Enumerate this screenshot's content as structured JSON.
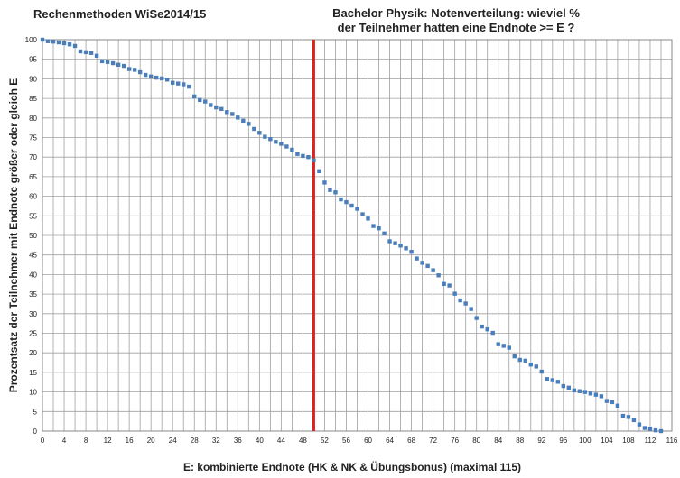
{
  "chart_data": {
    "type": "scatter",
    "title_left": "Rechenmethoden WiSe2014/15",
    "title_right_line1": "Bachelor Physik: Notenverteilung: wieviel %",
    "title_right_line2": "der Teilnehmer  hatten eine Endnote >= E ?",
    "xlabel": "E: kombinierte Endnote (HK & NK & Übungsbonus) (maximal 115)",
    "ylabel": "Prozentsatz der Teilnehmer mit Endnote größer oder gleich E",
    "xlim": [
      0,
      116
    ],
    "ylim": [
      0,
      100
    ],
    "x_ticks": [
      0,
      4,
      8,
      12,
      16,
      20,
      24,
      28,
      32,
      36,
      40,
      44,
      48,
      52,
      56,
      60,
      64,
      68,
      72,
      76,
      80,
      84,
      88,
      92,
      96,
      100,
      104,
      108,
      112,
      116
    ],
    "y_ticks": [
      0,
      5,
      10,
      15,
      20,
      25,
      30,
      35,
      40,
      45,
      50,
      55,
      60,
      65,
      70,
      75,
      80,
      85,
      90,
      95,
      100
    ],
    "grid": true,
    "vertical_marker": {
      "x": 50,
      "color": "#e0201c"
    },
    "point_color": "#4a7ebb",
    "points": [
      [
        0,
        100
      ],
      [
        1,
        99.6
      ],
      [
        2,
        99.5
      ],
      [
        3,
        99.3
      ],
      [
        4,
        99.1
      ],
      [
        5,
        98.8
      ],
      [
        6,
        98.4
      ],
      [
        7,
        97
      ],
      [
        8,
        96.8
      ],
      [
        9,
        96.6
      ],
      [
        10,
        95.9
      ],
      [
        11,
        94.5
      ],
      [
        12,
        94.3
      ],
      [
        13,
        94
      ],
      [
        14,
        93.6
      ],
      [
        15,
        93.3
      ],
      [
        16,
        92.5
      ],
      [
        17,
        92.3
      ],
      [
        18,
        91.7
      ],
      [
        19,
        91
      ],
      [
        20,
        90.6
      ],
      [
        21,
        90.3
      ],
      [
        22,
        90.1
      ],
      [
        23,
        89.8
      ],
      [
        24,
        89
      ],
      [
        25,
        88.8
      ],
      [
        26,
        88.6
      ],
      [
        27,
        88
      ],
      [
        28,
        85.5
      ],
      [
        29,
        84.6
      ],
      [
        30,
        84.2
      ],
      [
        31,
        83.3
      ],
      [
        32,
        82.7
      ],
      [
        33,
        82.3
      ],
      [
        34,
        81.5
      ],
      [
        35,
        81
      ],
      [
        36,
        80.1
      ],
      [
        37,
        79.3
      ],
      [
        38,
        78.5
      ],
      [
        39,
        77.2
      ],
      [
        40,
        76.2
      ],
      [
        41,
        75.2
      ],
      [
        42,
        74.6
      ],
      [
        43,
        73.9
      ],
      [
        44,
        73.4
      ],
      [
        45,
        72.7
      ],
      [
        46,
        71.9
      ],
      [
        47,
        70.8
      ],
      [
        48,
        70.3
      ],
      [
        49,
        70
      ],
      [
        50,
        69.2
      ],
      [
        51,
        66.4
      ],
      [
        52,
        63.5
      ],
      [
        53,
        61.6
      ],
      [
        54,
        61
      ],
      [
        55,
        59.2
      ],
      [
        56,
        58.5
      ],
      [
        57,
        57.6
      ],
      [
        58,
        56.8
      ],
      [
        59,
        55.4
      ],
      [
        60,
        54.3
      ],
      [
        61,
        52.4
      ],
      [
        62,
        51.8
      ],
      [
        63,
        50.5
      ],
      [
        64,
        48.5
      ],
      [
        65,
        48
      ],
      [
        66,
        47.4
      ],
      [
        67,
        46.7
      ],
      [
        68,
        45.8
      ],
      [
        69,
        44.1
      ],
      [
        70,
        43
      ],
      [
        71,
        42.2
      ],
      [
        72,
        41.1
      ],
      [
        73,
        39.8
      ],
      [
        74,
        37.6
      ],
      [
        75,
        37.2
      ],
      [
        76,
        35.1
      ],
      [
        77,
        33.4
      ],
      [
        78,
        32.6
      ],
      [
        79,
        31.2
      ],
      [
        80,
        28.9
      ],
      [
        81,
        26.7
      ],
      [
        82,
        26
      ],
      [
        83,
        25.1
      ],
      [
        84,
        22.2
      ],
      [
        85,
        21.8
      ],
      [
        86,
        21.3
      ],
      [
        87,
        19.1
      ],
      [
        88,
        18.2
      ],
      [
        89,
        18
      ],
      [
        90,
        17
      ],
      [
        91,
        16.5
      ],
      [
        92,
        15.2
      ],
      [
        93,
        13.3
      ],
      [
        94,
        13
      ],
      [
        95,
        12.6
      ],
      [
        96,
        11.5
      ],
      [
        97,
        11.1
      ],
      [
        98,
        10.4
      ],
      [
        99,
        10.2
      ],
      [
        100,
        10
      ],
      [
        101,
        9.6
      ],
      [
        102,
        9.3
      ],
      [
        103,
        8.9
      ],
      [
        104,
        7.7
      ],
      [
        105,
        7.4
      ],
      [
        106,
        6.5
      ],
      [
        107,
        3.9
      ],
      [
        108,
        3.6
      ],
      [
        109,
        2.8
      ],
      [
        110,
        1.7
      ],
      [
        111,
        0.8
      ],
      [
        112,
        0.6
      ],
      [
        113,
        0.2
      ],
      [
        114,
        0
      ]
    ]
  }
}
